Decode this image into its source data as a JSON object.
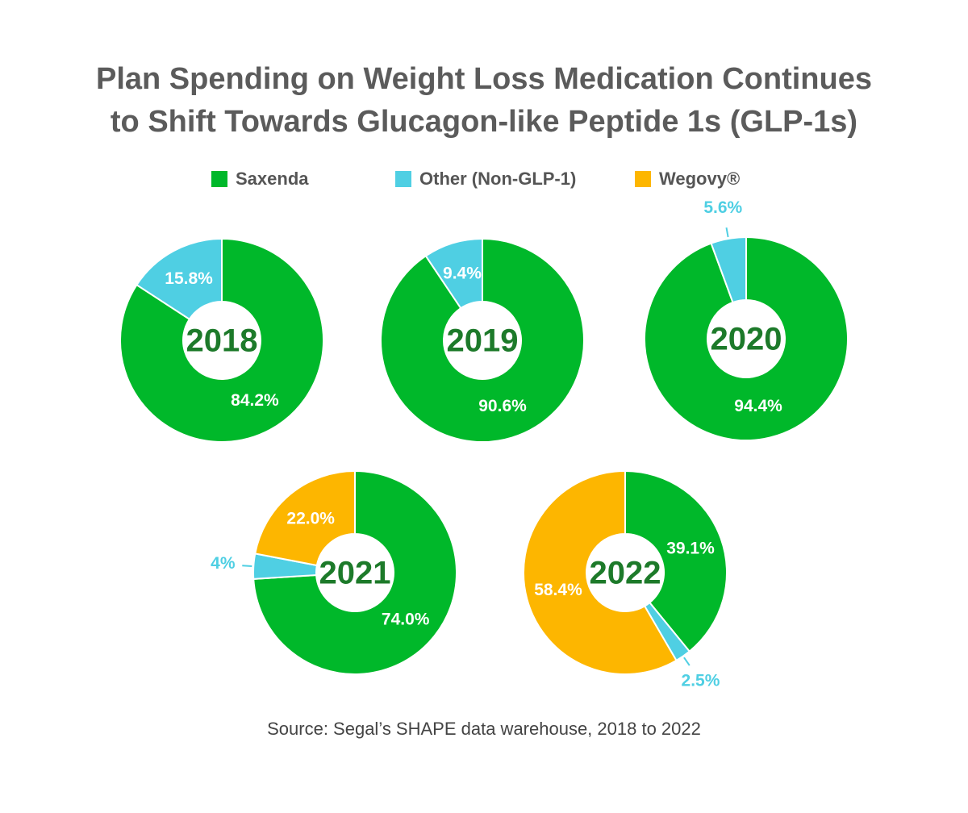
{
  "title": [
    "Plan Spending on Weight Loss Medication Continues",
    "to Shift Towards Glucagon-like Peptide 1s (GLP-1s)"
  ],
  "legend": [
    {
      "name": "Saxenda",
      "color": "#00b82a"
    },
    {
      "name": "Other (Non-GLP-1)",
      "color": "#4fcfe3"
    },
    {
      "name": "Wegovy®",
      "color": "#fdb600"
    }
  ],
  "source": "Source: Segal’s SHAPE data warehouse, 2018 to 2022",
  "chart_data": [
    {
      "type": "donut",
      "title": "2018",
      "values": [
        84.2,
        15.8,
        null
      ],
      "value_labels": [
        "84.2%",
        "15.8%",
        null
      ]
    },
    {
      "type": "donut",
      "title": "2019",
      "values": [
        90.6,
        9.4,
        null
      ],
      "value_labels": [
        "90.6%",
        "9.4%",
        null
      ]
    },
    {
      "type": "donut",
      "title": "2020",
      "values": [
        94.4,
        5.6,
        null
      ],
      "value_labels": [
        "94.4%",
        "5.6%",
        null
      ]
    },
    {
      "type": "donut",
      "title": "2021",
      "values": [
        74.0,
        4,
        22.0
      ],
      "value_labels": [
        "74.0%",
        "4%",
        "22.0%"
      ]
    },
    {
      "type": "donut",
      "title": "2022",
      "values": [
        39.1,
        2.5,
        58.4
      ],
      "value_labels": [
        "39.1%",
        "2.5%",
        "58.4%"
      ]
    }
  ]
}
